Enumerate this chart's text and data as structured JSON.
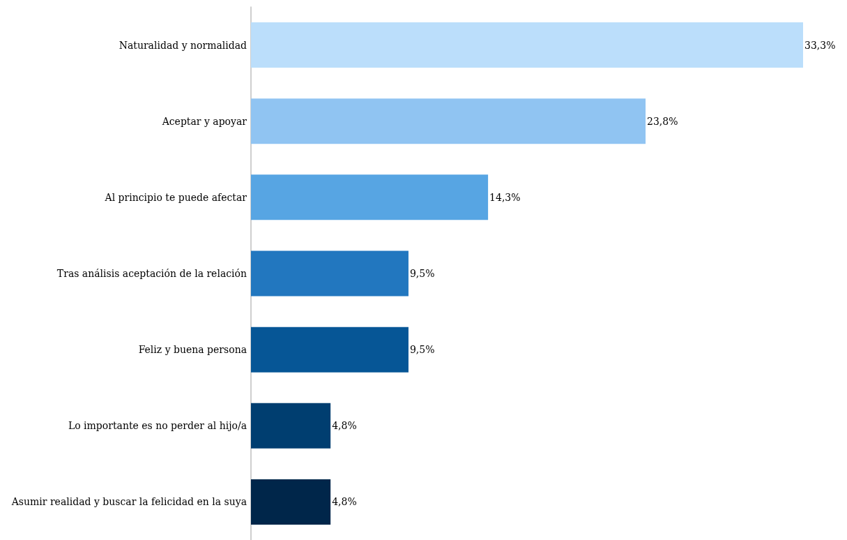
{
  "chart_data": {
    "type": "bar",
    "orientation": "horizontal",
    "categories": [
      "Naturalidad y normalidad",
      "Aceptar y apoyar",
      "Al principio te puede afectar",
      "Tras análisis aceptación de la relación",
      "Feliz y buena persona",
      "Lo importante es no perder al hijo/a",
      "Asumir realidad y buscar la felicidad en la suya"
    ],
    "values": [
      33.3,
      23.8,
      14.3,
      9.5,
      9.5,
      4.8,
      4.8
    ],
    "value_labels": [
      "33,3%",
      "23,8%",
      "14,3%",
      "9,5%",
      "9,5%",
      "4,8%",
      "4,8%"
    ],
    "colors": [
      "#bbdefb",
      "#90c4f2",
      "#57a5e3",
      "#2277bf",
      "#065696",
      "#003e70",
      "#00264a"
    ]
  }
}
